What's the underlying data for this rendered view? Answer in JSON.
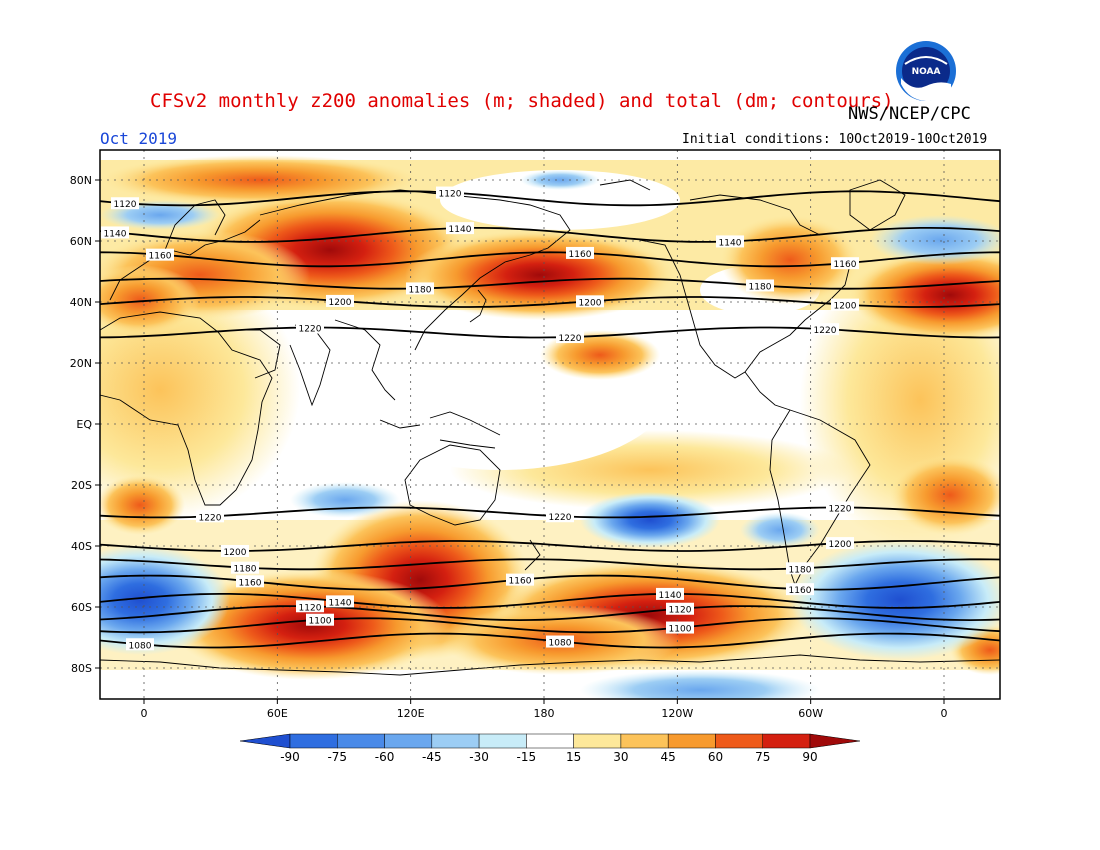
{
  "header": {
    "title": "CFSv2 monthly z200 anomalies (m; shaded) and total (dm; contours)",
    "agency": "NWS/NCEP/CPC",
    "month": "Oct 2019",
    "initial_conditions": "Initial conditions: 10Oct2019-10Oct2019",
    "logo_text": "NOAA"
  },
  "map": {
    "lat_labels": [
      "80N",
      "60N",
      "40N",
      "20N",
      "EQ",
      "20S",
      "40S",
      "60S",
      "80S"
    ],
    "lon_labels": [
      "0",
      "60E",
      "120E",
      "180",
      "120W",
      "60W",
      "0"
    ],
    "contours_dm": [
      {
        "label": "1080",
        "lat": -71
      },
      {
        "label": "1100",
        "lat": -66
      },
      {
        "label": "1120",
        "lat": -62
      },
      {
        "label": "1140",
        "lat": -58
      },
      {
        "label": "1160",
        "lat": -52
      },
      {
        "label": "1180",
        "lat": -46
      },
      {
        "label": "1200",
        "lat": -40
      },
      {
        "label": "1220",
        "lat": -29
      },
      {
        "label": "1220",
        "lat": 30
      },
      {
        "label": "1200",
        "lat": 40
      },
      {
        "label": "1180",
        "lat": 46
      },
      {
        "label": "1160",
        "lat": 54
      },
      {
        "label": "1140",
        "lat": 62
      },
      {
        "label": "1120",
        "lat": 74
      }
    ]
  },
  "colorbar": {
    "ticks": [
      "-90",
      "-75",
      "-60",
      "-45",
      "-30",
      "-15",
      "15",
      "30",
      "45",
      "60",
      "75",
      "90"
    ],
    "colors": [
      "#1f4fd0",
      "#2f6ee0",
      "#4a8ae8",
      "#6aa7ee",
      "#9ccdf4",
      "#c8ecf8",
      "#ffffff",
      "#fde89a",
      "#fcc35a",
      "#f79a2e",
      "#ee5a1a",
      "#d42010",
      "#a00a0a"
    ]
  }
}
